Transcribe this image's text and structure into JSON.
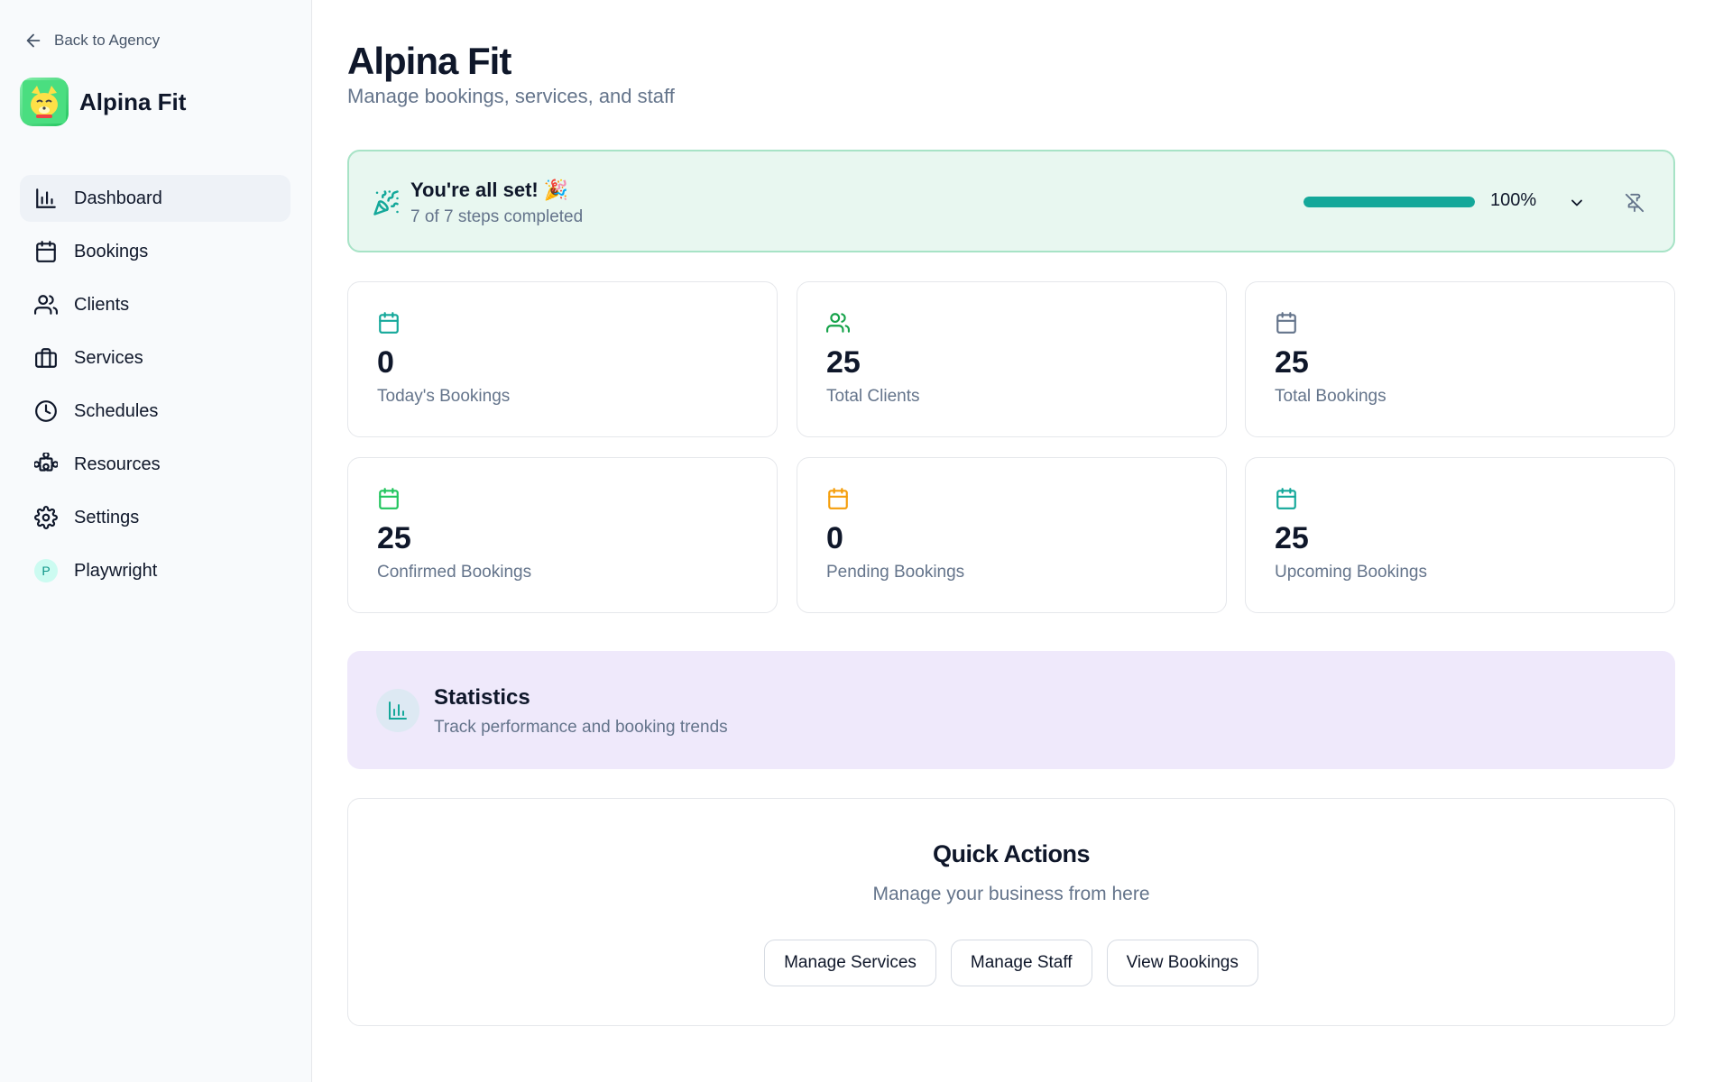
{
  "sidebar": {
    "back_label": "Back to Agency",
    "brand_name": "Alpina Fit",
    "items": [
      {
        "label": "Dashboard",
        "icon": "bar-chart-icon",
        "active": true
      },
      {
        "label": "Bookings",
        "icon": "calendar-icon"
      },
      {
        "label": "Clients",
        "icon": "users-icon"
      },
      {
        "label": "Services",
        "icon": "briefcase-icon"
      },
      {
        "label": "Schedules",
        "icon": "clock-icon"
      },
      {
        "label": "Resources",
        "icon": "puzzle-icon"
      },
      {
        "label": "Settings",
        "icon": "gear-icon"
      },
      {
        "label": "Playwright",
        "avatar": "P"
      }
    ]
  },
  "header": {
    "title": "Alpina Fit",
    "subtitle": "Manage bookings, services, and staff"
  },
  "setup": {
    "title": "You're all set! 🎉",
    "subtitle": "7 of 7 steps completed",
    "progress": 1.0,
    "progress_label": "100%"
  },
  "stats": [
    {
      "value": "0",
      "label": "Today's Bookings",
      "icon": "calendar-icon",
      "color": "#14a89a"
    },
    {
      "value": "25",
      "label": "Total Clients",
      "icon": "users-icon",
      "color": "#16a34a"
    },
    {
      "value": "25",
      "label": "Total Bookings",
      "icon": "calendar-icon",
      "color": "#64748b"
    },
    {
      "value": "25",
      "label": "Confirmed Bookings",
      "icon": "calendar-icon",
      "color": "#22c55e"
    },
    {
      "value": "0",
      "label": "Pending Bookings",
      "icon": "calendar-icon",
      "color": "#f59e0b"
    },
    {
      "value": "25",
      "label": "Upcoming Bookings",
      "icon": "calendar-icon",
      "color": "#14a89a"
    }
  ],
  "statistics": {
    "title": "Statistics",
    "subtitle": "Track performance and booking trends"
  },
  "quick_actions": {
    "title": "Quick Actions",
    "subtitle": "Manage your business from here",
    "buttons": [
      "Manage Services",
      "Manage Staff",
      "View Bookings"
    ]
  },
  "colors": {
    "accent": "#14a89a",
    "banner_bg": "#e8f7f0",
    "statistics_bg": "#efe9fb"
  }
}
